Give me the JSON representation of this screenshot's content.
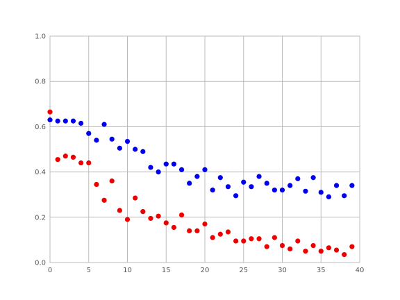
{
  "chart_data": {
    "type": "scatter",
    "xlim": [
      0,
      40
    ],
    "ylim": [
      0,
      1
    ],
    "grid": true,
    "x_ticks": [
      "0",
      "5",
      "10",
      "15",
      "20",
      "25",
      "30",
      "35",
      "40"
    ],
    "y_ticks": [
      "0.0",
      "0.2",
      "0.4",
      "0.6",
      "0.8",
      "1.0"
    ],
    "series": [
      {
        "color": "#0000ee",
        "x": [
          0,
          1,
          2,
          3,
          4,
          5,
          6,
          7,
          8,
          9,
          10,
          11,
          12,
          13,
          14,
          15,
          16,
          17,
          18,
          19,
          20,
          21,
          22,
          23,
          24,
          25,
          26,
          27,
          28,
          29,
          30,
          31,
          32,
          33,
          34,
          35,
          36,
          37,
          38,
          39
        ],
        "y": [
          0.63,
          0.625,
          0.625,
          0.625,
          0.615,
          0.57,
          0.54,
          0.61,
          0.545,
          0.505,
          0.535,
          0.5,
          0.49,
          0.42,
          0.4,
          0.435,
          0.435,
          0.41,
          0.35,
          0.38,
          0.41,
          0.32,
          0.375,
          0.335,
          0.295,
          0.355,
          0.335,
          0.38,
          0.35,
          0.32,
          0.32,
          0.34,
          0.37,
          0.315,
          0.375,
          0.31,
          0.29,
          0.34,
          0.295,
          0.34
        ]
      },
      {
        "color": "#ee0000",
        "x": [
          0,
          1,
          2,
          3,
          4,
          5,
          6,
          7,
          8,
          9,
          10,
          11,
          12,
          13,
          14,
          15,
          16,
          17,
          18,
          19,
          20,
          21,
          22,
          23,
          24,
          25,
          26,
          27,
          28,
          29,
          30,
          31,
          32,
          33,
          34,
          35,
          36,
          37,
          38,
          39
        ],
        "y": [
          0.665,
          0.455,
          0.47,
          0.465,
          0.44,
          0.44,
          0.345,
          0.275,
          0.36,
          0.23,
          0.19,
          0.285,
          0.225,
          0.195,
          0.205,
          0.175,
          0.155,
          0.21,
          0.14,
          0.14,
          0.17,
          0.11,
          0.125,
          0.135,
          0.095,
          0.095,
          0.105,
          0.105,
          0.07,
          0.11,
          0.075,
          0.06,
          0.095,
          0.05,
          0.075,
          0.05,
          0.065,
          0.055,
          0.035,
          0.07
        ]
      }
    ]
  }
}
